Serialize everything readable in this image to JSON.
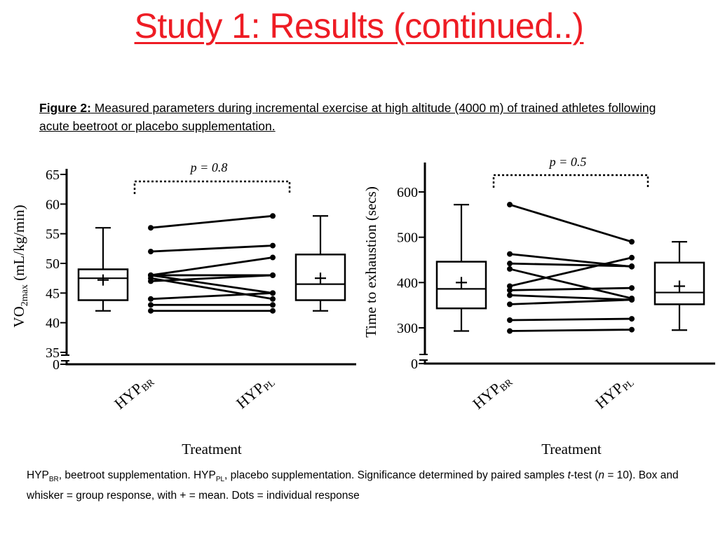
{
  "slide": {
    "title": "Study 1: Results (continued..)",
    "caption_label": "Figure 2:",
    "caption_text": " Measured parameters during incremental exercise at high altitude (4000 m) of trained athletes following acute beetroot or placebo supplementation.",
    "footnote": {
      "hyp": "HYP",
      "br_sub": "BR",
      "br_text": ", beetroot supplementation. ",
      "pl_sub": "PL",
      "pl_text": ", placebo supplementation. Significance determined by paired samples ",
      "t": "t",
      "t_rest": "-test (",
      "n": "n",
      "n_rest": " = 10). Box and whisker = group response, with + = mean. Dots = individual response"
    }
  },
  "chart_data": [
    {
      "type": "box-paired",
      "ylabel_main": "VO",
      "ylabel_sub": "2max",
      "ylabel_rest": " (mL/kg/min)",
      "xlabel": "Treatment",
      "categories": [
        {
          "main": "HYP",
          "sub": "BR"
        },
        {
          "main": "HYP",
          "sub": "PL"
        }
      ],
      "significance": "p = 0.8",
      "yticks": [
        0,
        35,
        40,
        45,
        50,
        55,
        60,
        65
      ],
      "ylim": [
        35,
        65
      ],
      "axis_break": true,
      "boxes": [
        {
          "min": 42,
          "q1": 43.8,
          "median": 47.5,
          "q3": 49,
          "max": 56,
          "mean": 47.2
        },
        {
          "min": 42,
          "q1": 43.8,
          "median": 46.5,
          "q3": 51.5,
          "max": 58,
          "mean": 47.5
        }
      ],
      "pairs": [
        [
          56,
          58
        ],
        [
          52,
          53
        ],
        [
          48,
          51
        ],
        [
          48,
          48
        ],
        [
          48,
          45
        ],
        [
          47.5,
          44
        ],
        [
          47,
          48
        ],
        [
          44,
          45
        ],
        [
          43,
          43
        ],
        [
          42,
          42
        ]
      ]
    },
    {
      "type": "box-paired",
      "ylabel_main": "Time to exhaustion (secs)",
      "xlabel": "Treatment",
      "categories": [
        {
          "main": "HYP",
          "sub": "BR"
        },
        {
          "main": "HYP",
          "sub": "PL"
        }
      ],
      "significance": "p = 0.5",
      "yticks": [
        0,
        300,
        400,
        500,
        600
      ],
      "ylim": [
        275,
        640
      ],
      "axis_break": true,
      "boxes": [
        {
          "min": 293,
          "q1": 343,
          "median": 386,
          "q3": 446,
          "max": 572,
          "mean": 400
        },
        {
          "min": 295,
          "q1": 352,
          "median": 378,
          "q3": 444,
          "max": 490,
          "mean": 392
        }
      ],
      "pairs": [
        [
          572,
          490
        ],
        [
          463,
          435
        ],
        [
          442,
          436
        ],
        [
          430,
          365
        ],
        [
          392,
          455
        ],
        [
          383,
          388
        ],
        [
          372,
          362
        ],
        [
          352,
          362
        ],
        [
          317,
          320
        ],
        [
          293,
          296
        ]
      ]
    }
  ]
}
